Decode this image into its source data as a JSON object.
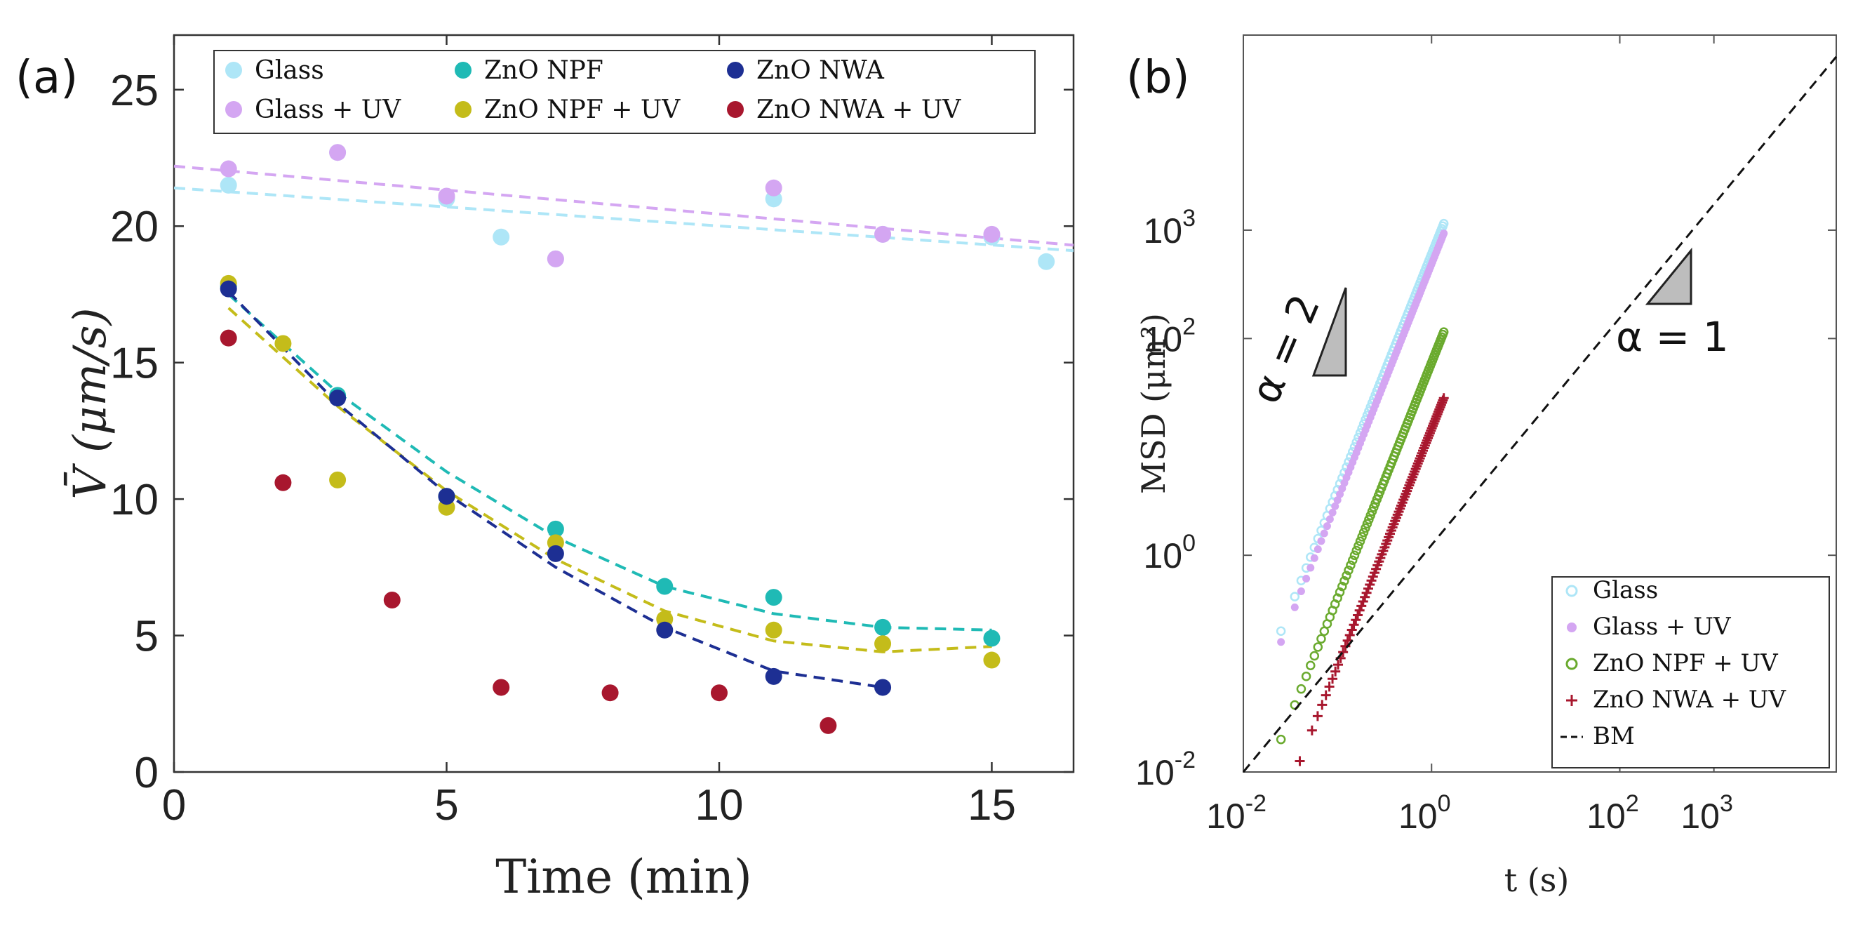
{
  "figure": {
    "panel_a_label": "(a)",
    "panel_b_label": "(b)"
  },
  "chart_data": [
    {
      "type": "scatter",
      "panel": "(a)",
      "title": "",
      "xlabel": "Time (min)",
      "ylabel": "V̄ (μm/s)",
      "xlim": [
        0,
        16.5
      ],
      "ylim": [
        0,
        27
      ],
      "xticks": [
        0,
        5,
        10,
        15
      ],
      "yticks": [
        0,
        5,
        10,
        15,
        20,
        25
      ],
      "grid": false,
      "legend_position": "top",
      "series": [
        {
          "name": "Glass",
          "color": "#aee6f7",
          "x": [
            1,
            3,
            5,
            6,
            7,
            11,
            13,
            15,
            16
          ],
          "y": [
            21.5,
            22.7,
            21.0,
            19.6,
            18.8,
            21.0,
            19.7,
            19.6,
            18.7
          ],
          "fit": {
            "x": [
              0,
              16.5
            ],
            "y": [
              21.4,
              19.1
            ]
          }
        },
        {
          "name": "Glass + UV",
          "color": "#d4a6f2",
          "x": [
            1,
            3,
            5,
            7,
            11,
            13,
            15
          ],
          "y": [
            22.1,
            22.7,
            21.1,
            18.8,
            21.4,
            19.7,
            19.7
          ],
          "fit": {
            "x": [
              0,
              16.5
            ],
            "y": [
              22.2,
              19.3
            ]
          }
        },
        {
          "name": "ZnO NPF",
          "color": "#1fbab5",
          "x": [
            1,
            3,
            5,
            7,
            9,
            11,
            13,
            15
          ],
          "y": [
            17.8,
            13.8,
            10.1,
            8.9,
            6.8,
            6.4,
            5.3,
            4.9
          ],
          "fit": {
            "x": [
              1,
              3,
              5,
              7,
              9,
              11,
              13,
              15
            ],
            "y": [
              17.5,
              13.9,
              11.0,
              8.6,
              6.8,
              5.8,
              5.3,
              5.2
            ]
          }
        },
        {
          "name": "ZnO NPF + UV",
          "color": "#c4bc1a",
          "x": [
            1,
            2,
            3,
            5,
            7,
            9,
            11,
            13,
            15
          ],
          "y": [
            17.9,
            15.7,
            10.7,
            9.7,
            8.4,
            5.6,
            5.2,
            4.7,
            4.1
          ],
          "fit": {
            "x": [
              1,
              3,
              5,
              7,
              9,
              11,
              13,
              15
            ],
            "y": [
              17.0,
              13.4,
              10.3,
              7.8,
              5.9,
              4.8,
              4.4,
              4.6
            ]
          }
        },
        {
          "name": "ZnO NWA",
          "color": "#1d2f93",
          "x": [
            1,
            3,
            5,
            7,
            9,
            11,
            13
          ],
          "y": [
            17.7,
            13.7,
            10.1,
            8.0,
            5.2,
            3.5,
            3.1
          ],
          "fit": {
            "x": [
              1,
              3,
              5,
              7,
              9,
              11,
              13
            ],
            "y": [
              17.6,
              13.5,
              10.2,
              7.5,
              5.3,
              3.7,
              3.1
            ]
          }
        },
        {
          "name": "ZnO NWA + UV",
          "color": "#a8172e",
          "x": [
            1,
            2,
            4,
            6,
            8,
            10,
            12
          ],
          "y": [
            15.9,
            10.6,
            6.3,
            3.1,
            2.9,
            2.9,
            1.7
          ],
          "fit": null
        }
      ]
    },
    {
      "type": "scatter",
      "panel": "(b)",
      "title": "",
      "xlabel": "t (s)",
      "ylabel": "MSD (μm²)",
      "xscale": "log",
      "yscale": "log",
      "xlim_log10": [
        -2,
        4.3
      ],
      "ylim_log10": [
        -2,
        4.8
      ],
      "xticks": [
        {
          "base": "10",
          "exp": "-2"
        },
        {
          "base": "10",
          "exp": "0"
        },
        {
          "base": "10",
          "exp": "2"
        },
        {
          "base": "10",
          "exp": "3"
        }
      ],
      "xtick_log10": [
        -2,
        0,
        2,
        3
      ],
      "yticks": [
        {
          "base": "10",
          "exp": "-2"
        },
        {
          "base": "10",
          "exp": "0"
        },
        {
          "base": "10",
          "exp": "2"
        },
        {
          "base": "10",
          "exp": "3"
        }
      ],
      "ytick_log10": [
        -2,
        0,
        2,
        3
      ],
      "legend_position": "bottom-right",
      "annotations": [
        {
          "text": "α = 2",
          "slope": 2
        },
        {
          "text": "α = 1",
          "slope": 1
        }
      ],
      "series": [
        {
          "name": "Glass",
          "color": "#aee6f7",
          "marker": "open-circle",
          "logx_start": -1.6,
          "logx_end": 0.13,
          "logy_at_start": -0.7,
          "logy_at_end": 3.06
        },
        {
          "name": "Glass + UV",
          "color": "#d4a6f2",
          "marker": "filled-circle",
          "logx_start": -1.6,
          "logx_end": 0.13,
          "logy_at_start": -0.8,
          "logy_at_end": 2.97
        },
        {
          "name": "ZnO NPF + UV",
          "color": "#6aaa2e",
          "marker": "open-circle",
          "logx_start": -1.6,
          "logx_end": 0.13,
          "logy_at_start": -1.7,
          "logy_at_end": 2.06
        },
        {
          "name": "ZnO NWA + UV",
          "color": "#a8172e",
          "marker": "plus",
          "logx_start": -1.4,
          "logx_end": 0.13,
          "logy_at_start": -1.9,
          "logy_at_end": 1.45
        },
        {
          "name": "BM",
          "color": "#111111",
          "marker": "dashed-line",
          "logx_start": -2,
          "logx_end": 4.3,
          "logy_at_start": -2,
          "logy_at_end": 4.6
        }
      ]
    }
  ]
}
